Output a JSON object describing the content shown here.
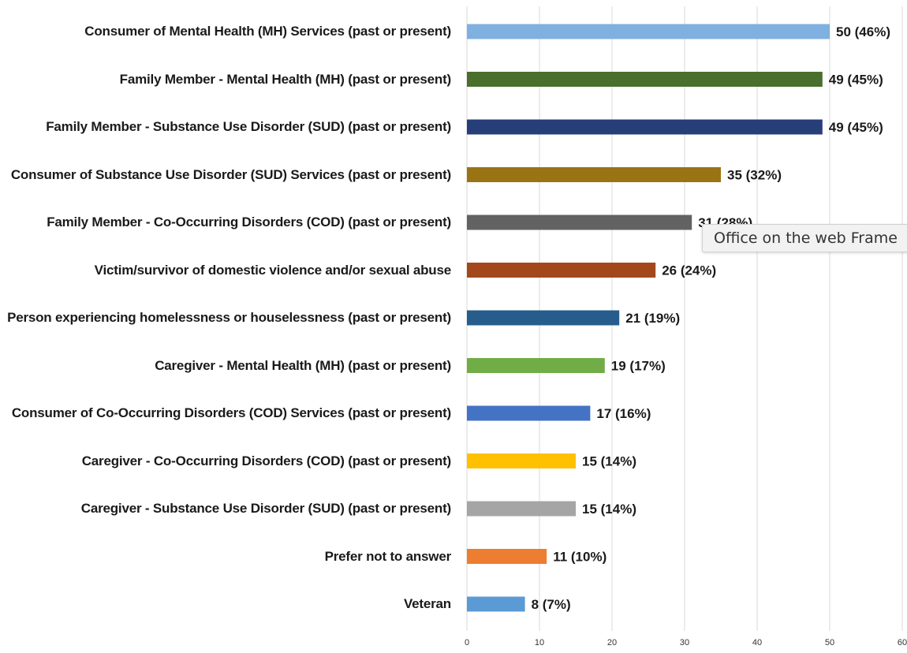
{
  "chart_data": {
    "type": "bar",
    "orientation": "horizontal",
    "categories": [
      "Consumer of Mental Health (MH) Services (past or present)",
      "Family Member - Mental Health (MH) (past or present)",
      "Family Member - Substance Use Disorder (SUD) (past or present)",
      "Consumer of Substance Use Disorder (SUD) Services (past or present)",
      "Family Member - Co-Occurring Disorders (COD) (past or present)",
      "Victim/survivor of domestic violence and/or sexual abuse",
      "Person experiencing homelessness or houselessness (past or present)",
      "Caregiver - Mental Health (MH) (past or present)",
      "Consumer of Co-Occurring Disorders (COD) Services (past or present)",
      "Caregiver - Co-Occurring Disorders (COD) (past or present)",
      "Caregiver - Substance Use Disorder (SUD) (past or present)",
      "Prefer not to answer",
      "Veteran"
    ],
    "values": [
      50,
      49,
      49,
      35,
      31,
      26,
      21,
      19,
      17,
      15,
      15,
      11,
      8
    ],
    "data_labels": [
      "50 (46%)",
      "49 (45%)",
      "49 (45%)",
      "35 (32%)",
      "31 (28%)",
      "26 (24%)",
      "21 (19%)",
      "19 (17%)",
      "17 (16%)",
      "15 (14%)",
      "15 (14%)",
      "11 (10%)",
      "8 (7%)"
    ],
    "colors": [
      "#7fb0e0",
      "#4a6e2c",
      "#273f78",
      "#9a7414",
      "#626262",
      "#a4481c",
      "#265d8c",
      "#70ad47",
      "#4472c4",
      "#ffc000",
      "#a5a5a5",
      "#ed7d31",
      "#5b9bd5"
    ],
    "xlim": [
      0,
      60
    ],
    "xticks": [
      "0",
      "10",
      "20",
      "30",
      "40",
      "50",
      "60"
    ],
    "grid": true,
    "title": "",
    "xlabel": "",
    "ylabel": ""
  },
  "tooltip": {
    "text": "Office on the web Frame"
  }
}
